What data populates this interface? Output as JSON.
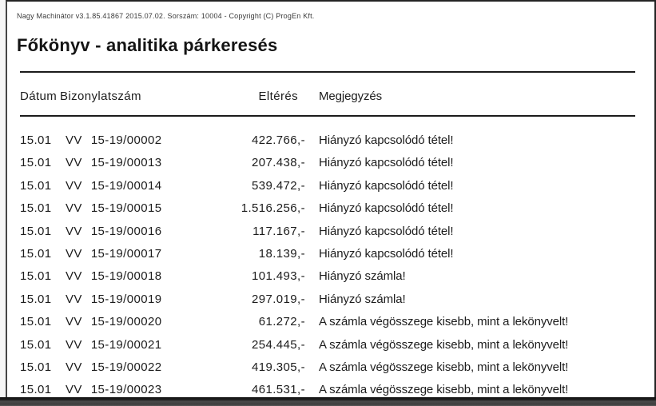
{
  "app": {
    "info_line": "Nagy Machinátor v3.1.85.41867 2015.07.02. Sorszám: 10004 - Copyright (C) ProgEn Kft.",
    "report_title": "Főkönyv - analitika párkeresés"
  },
  "table": {
    "headers": {
      "date": "Dátum",
      "voucher": "Bizonylatszám",
      "difference": "Eltérés",
      "note": "Megjegyzés"
    },
    "rows": [
      {
        "date": "15.01",
        "voucher_prefix": "VV",
        "voucher_number": "15-19/00002",
        "difference": "422.766,-",
        "note": "Hiányzó kapcsolódó tétel!"
      },
      {
        "date": "15.01",
        "voucher_prefix": "VV",
        "voucher_number": "15-19/00013",
        "difference": "207.438,-",
        "note": "Hiányzó kapcsolódó tétel!"
      },
      {
        "date": "15.01",
        "voucher_prefix": "VV",
        "voucher_number": "15-19/00014",
        "difference": "539.472,-",
        "note": "Hiányzó kapcsolódó tétel!"
      },
      {
        "date": "15.01",
        "voucher_prefix": "VV",
        "voucher_number": "15-19/00015",
        "difference": "1.516.256,-",
        "note": "Hiányzó kapcsolódó tétel!"
      },
      {
        "date": "15.01",
        "voucher_prefix": "VV",
        "voucher_number": "15-19/00016",
        "difference": "117.167,-",
        "note": "Hiányzó kapcsolódó tétel!"
      },
      {
        "date": "15.01",
        "voucher_prefix": "VV",
        "voucher_number": "15-19/00017",
        "difference": "18.139,-",
        "note": "Hiányzó kapcsolódó tétel!"
      },
      {
        "date": "15.01",
        "voucher_prefix": "VV",
        "voucher_number": "15-19/00018",
        "difference": "101.493,-",
        "note": "Hiányzó számla!"
      },
      {
        "date": "15.01",
        "voucher_prefix": "VV",
        "voucher_number": "15-19/00019",
        "difference": "297.019,-",
        "note": "Hiányzó számla!"
      },
      {
        "date": "15.01",
        "voucher_prefix": "VV",
        "voucher_number": "15-19/00020",
        "difference": "61.272,-",
        "note": "A számla végösszege kisebb, mint a lekönyvelt!"
      },
      {
        "date": "15.01",
        "voucher_prefix": "VV",
        "voucher_number": "15-19/00021",
        "difference": "254.445,-",
        "note": "A számla végösszege kisebb, mint a lekönyvelt!"
      },
      {
        "date": "15.01",
        "voucher_prefix": "VV",
        "voucher_number": "15-19/00022",
        "difference": "419.305,-",
        "note": "A számla végösszege kisebb, mint a lekönyvelt!"
      },
      {
        "date": "15.01",
        "voucher_prefix": "VV",
        "voucher_number": "15-19/00023",
        "difference": "461.531,-",
        "note": "A számla végösszege kisebb, mint a lekönyvelt!"
      }
    ]
  },
  "colors": {
    "text": "#1c1c1c",
    "rule": "#1b1b1b",
    "frame_border": "#232323",
    "bottom_bar": "#3f3f3f"
  }
}
